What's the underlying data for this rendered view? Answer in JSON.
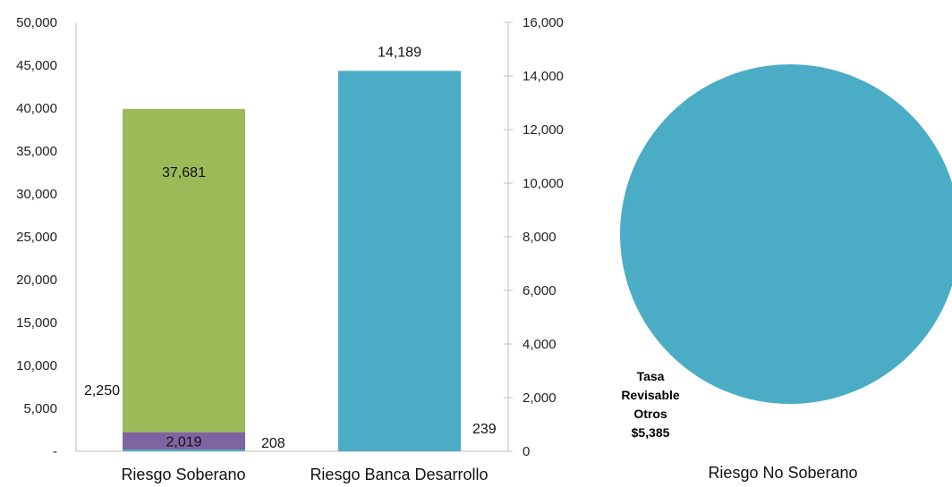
{
  "chart_data": [
    {
      "type": "bar",
      "stacked": true,
      "categories": [
        "Riesgo Soberano",
        "Riesgo Banca Desarrollo"
      ],
      "left_axis": {
        "ylim": [
          0,
          50000
        ],
        "ticks": [
          "-",
          "5,000",
          "10,000",
          "15,000",
          "20,000",
          "25,000",
          "30,000",
          "35,000",
          "40,000",
          "45,000",
          "50,000"
        ],
        "tick_values": [
          0,
          5000,
          10000,
          15000,
          20000,
          25000,
          30000,
          35000,
          40000,
          45000,
          50000
        ]
      },
      "right_axis": {
        "ylim": [
          0,
          16000
        ],
        "ticks": [
          "0",
          "2,000",
          "4,000",
          "6,000",
          "8,000",
          "10,000",
          "12,000",
          "14,000",
          "16,000"
        ],
        "tick_values": [
          0,
          2000,
          4000,
          6000,
          8000,
          10000,
          12000,
          14000,
          16000
        ]
      },
      "bars": [
        {
          "category": "Riesgo Soberano",
          "axis": "left",
          "segments": [
            {
              "value": 208,
              "label": "208",
              "color": "#4BACC6"
            },
            {
              "value": 2019,
              "label": "2,019",
              "color": "#8064A2"
            },
            {
              "value": 37681,
              "label": "37,681",
              "color": "#9BBB59"
            }
          ],
          "extra_labels": [
            "2,250"
          ]
        },
        {
          "category": "Riesgo Banca Desarrollo",
          "axis": "right",
          "segments": [
            {
              "value": 14189,
              "label": "14,189",
              "color": "#4BACC6"
            }
          ],
          "extra_labels": [
            "239"
          ]
        }
      ]
    },
    {
      "type": "pie",
      "category_label": "Riesgo No Soberano",
      "slices": [
        {
          "label_lines": [
            "Tasa",
            "Revisable",
            "Otros",
            "$5,385"
          ],
          "value": 5385,
          "color": "#4BACC6"
        }
      ]
    }
  ]
}
